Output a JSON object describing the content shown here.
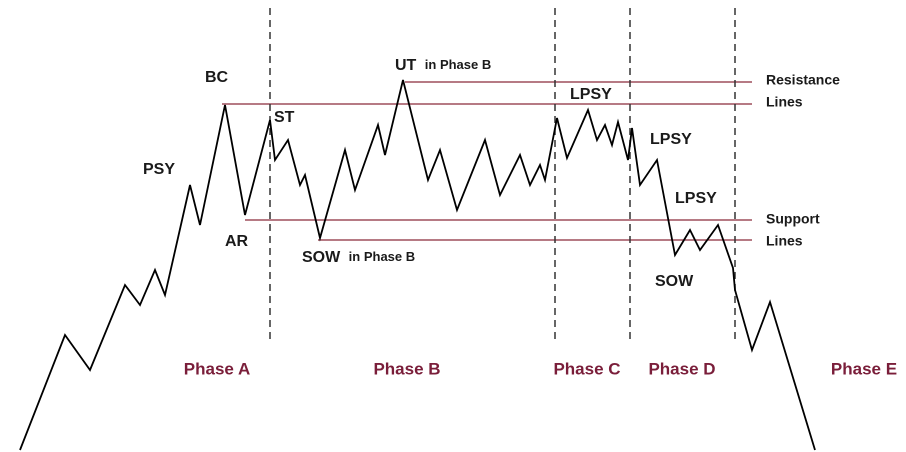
{
  "events": {
    "bc": "BC",
    "psy": "PSY",
    "ar": "AR",
    "st": "ST",
    "ut_phase_b": {
      "main": "UT",
      "suffix": "in Phase B"
    },
    "sow_phase_b": {
      "main": "SOW",
      "suffix": "in Phase B"
    },
    "lpsy_1": "LPSY",
    "lpsy_2": "LPSY",
    "lpsy_3": "LPSY",
    "sow": "SOW"
  },
  "legend": {
    "resistance": [
      "Resistance",
      "Lines"
    ],
    "support": [
      "Support",
      "Lines"
    ]
  },
  "phases": [
    "Phase A",
    "Phase B",
    "Phase C",
    "Phase D",
    "Phase E"
  ]
}
